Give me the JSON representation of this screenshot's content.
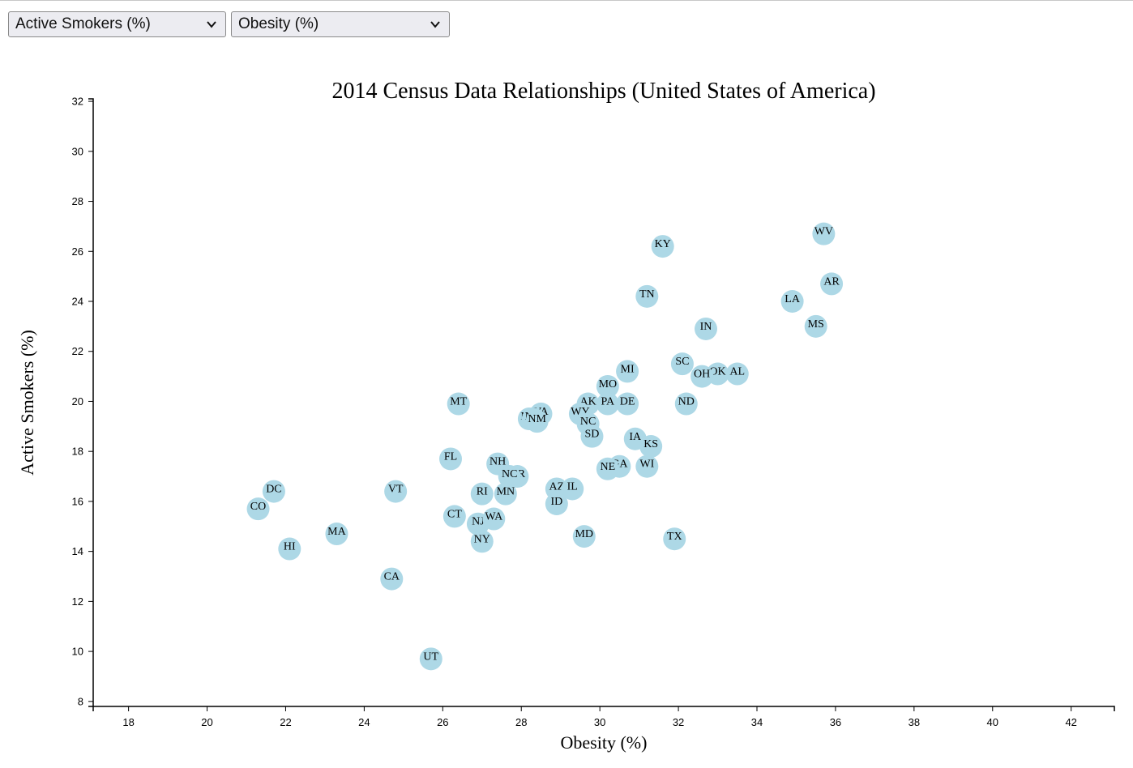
{
  "controls": {
    "y_select": {
      "value": "Active Smokers (%)",
      "icon": "chevron-down-icon"
    },
    "x_select": {
      "value": "Obesity (%)",
      "icon": "chevron-down-icon"
    }
  },
  "colors": {
    "dot": "#add8e6",
    "axis": "#000000"
  },
  "chart_data": {
    "type": "scatter",
    "title": "2014 Census Data Relationships (United States of America)",
    "xlabel": "Obesity (%)",
    "ylabel": "Active Smokers (%)",
    "xlim": [
      17.1,
      43.1
    ],
    "ylim": [
      7.8,
      32.1
    ],
    "x_ticks": [
      18,
      20,
      22,
      24,
      26,
      28,
      30,
      32,
      34,
      36,
      38,
      40,
      42
    ],
    "y_ticks": [
      8,
      10,
      12,
      14,
      16,
      18,
      20,
      22,
      24,
      26,
      28,
      30,
      32
    ],
    "grid": false,
    "points": [
      {
        "label": "WV",
        "x": 35.7,
        "y": 26.7
      },
      {
        "label": "KY",
        "x": 31.6,
        "y": 26.2
      },
      {
        "label": "AR",
        "x": 35.9,
        "y": 24.7
      },
      {
        "label": "TN",
        "x": 31.2,
        "y": 24.2
      },
      {
        "label": "LA",
        "x": 34.9,
        "y": 24.0
      },
      {
        "label": "MS",
        "x": 35.5,
        "y": 23.0
      },
      {
        "label": "IN",
        "x": 32.7,
        "y": 22.9
      },
      {
        "label": "SC",
        "x": 32.1,
        "y": 21.5
      },
      {
        "label": "MI",
        "x": 30.7,
        "y": 21.2
      },
      {
        "label": "AL",
        "x": 33.5,
        "y": 21.1
      },
      {
        "label": "OK",
        "x": 33.0,
        "y": 21.1
      },
      {
        "label": "OH",
        "x": 32.6,
        "y": 21.0
      },
      {
        "label": "MO",
        "x": 30.2,
        "y": 20.6
      },
      {
        "label": "MT",
        "x": 26.4,
        "y": 19.9
      },
      {
        "label": "ND",
        "x": 32.2,
        "y": 19.9
      },
      {
        "label": "DE",
        "x": 30.7,
        "y": 19.9
      },
      {
        "label": "PA",
        "x": 30.2,
        "y": 19.9
      },
      {
        "label": "AK",
        "x": 29.7,
        "y": 19.9
      },
      {
        "label": "WY",
        "x": 29.5,
        "y": 19.5
      },
      {
        "label": "VA",
        "x": 28.5,
        "y": 19.5
      },
      {
        "label": "ME",
        "x": 28.2,
        "y": 19.3
      },
      {
        "label": "NV",
        "x": 28.3,
        "y": 19.3
      },
      {
        "label": "NM",
        "x": 28.4,
        "y": 19.2
      },
      {
        "label": "NC",
        "x": 29.7,
        "y": 19.1
      },
      {
        "label": "SD",
        "x": 29.8,
        "y": 18.6
      },
      {
        "label": "IA",
        "x": 30.9,
        "y": 18.5
      },
      {
        "label": "KS",
        "x": 31.3,
        "y": 18.2
      },
      {
        "label": "FL",
        "x": 26.2,
        "y": 17.7
      },
      {
        "label": "NH",
        "x": 27.4,
        "y": 17.5
      },
      {
        "label": "GA",
        "x": 30.5,
        "y": 17.4
      },
      {
        "label": "NE",
        "x": 30.2,
        "y": 17.3
      },
      {
        "label": "WI",
        "x": 31.2,
        "y": 17.4
      },
      {
        "label": "OR",
        "x": 27.9,
        "y": 17.0
      },
      {
        "label": "NJ",
        "x": 26.9,
        "y": 15.1
      },
      {
        "label": "WA",
        "x": 27.3,
        "y": 15.3
      },
      {
        "label": "NY",
        "x": 27.0,
        "y": 14.4
      },
      {
        "label": "CT",
        "x": 26.3,
        "y": 15.4
      },
      {
        "label": "RI",
        "x": 27.0,
        "y": 16.3
      },
      {
        "label": "MN",
        "x": 27.6,
        "y": 16.3
      },
      {
        "label": "AZ",
        "x": 28.9,
        "y": 16.5
      },
      {
        "label": "IL",
        "x": 29.3,
        "y": 16.5
      },
      {
        "label": "ID",
        "x": 28.9,
        "y": 15.9
      },
      {
        "label": "MD",
        "x": 29.6,
        "y": 14.6
      },
      {
        "label": "TX",
        "x": 31.9,
        "y": 14.5
      },
      {
        "label": "DC",
        "x": 21.7,
        "y": 16.4
      },
      {
        "label": "CO",
        "x": 21.3,
        "y": 15.7
      },
      {
        "label": "VT",
        "x": 24.8,
        "y": 16.4
      },
      {
        "label": "MA",
        "x": 23.3,
        "y": 14.7
      },
      {
        "label": "HI",
        "x": 22.1,
        "y": 14.1
      },
      {
        "label": "CA",
        "x": 24.7,
        "y": 12.9
      },
      {
        "label": "UT",
        "x": 25.7,
        "y": 9.7
      },
      {
        "label": "NC",
        "x": 27.7,
        "y": 17.0
      }
    ]
  }
}
